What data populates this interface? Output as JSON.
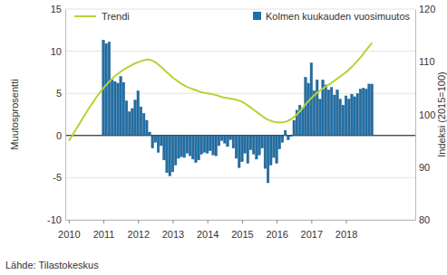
{
  "chart_data": {
    "type": "bar",
    "x": [
      2010,
      2010.083,
      2010.167,
      2010.25,
      2010.333,
      2010.417,
      2010.5,
      2010.583,
      2010.667,
      2010.75,
      2010.833,
      2010.917,
      2011,
      2011.083,
      2011.167,
      2011.25,
      2011.333,
      2011.417,
      2011.5,
      2011.583,
      2011.667,
      2011.75,
      2011.833,
      2011.917,
      2012,
      2012.083,
      2012.167,
      2012.25,
      2012.333,
      2012.417,
      2012.5,
      2012.583,
      2012.667,
      2012.75,
      2012.833,
      2012.917,
      2013,
      2013.083,
      2013.167,
      2013.25,
      2013.333,
      2013.417,
      2013.5,
      2013.583,
      2013.667,
      2013.75,
      2013.833,
      2013.917,
      2014,
      2014.083,
      2014.167,
      2014.25,
      2014.333,
      2014.417,
      2014.5,
      2014.583,
      2014.667,
      2014.75,
      2014.833,
      2014.917,
      2015,
      2015.083,
      2015.167,
      2015.25,
      2015.333,
      2015.417,
      2015.5,
      2015.583,
      2015.667,
      2015.75,
      2015.833,
      2015.917,
      2016,
      2016.083,
      2016.167,
      2016.25,
      2016.333,
      2016.417,
      2016.5,
      2016.583,
      2016.667,
      2016.75,
      2016.833,
      2016.917,
      2017,
      2017.083,
      2017.167,
      2017.25,
      2017.333,
      2017.417,
      2017.5,
      2017.583,
      2017.667,
      2017.75,
      2017.833,
      2017.917,
      2018,
      2018.083,
      2018.167,
      2018.25,
      2018.333,
      2018.417,
      2018.5,
      2018.583,
      2018.667,
      2018.75
    ],
    "series": [
      {
        "name": "Trendi",
        "type": "line",
        "axis": "y2",
        "color": "#b5d334",
        "values": [
          95.0,
          95.8,
          96.7,
          97.6,
          98.5,
          99.4,
          100.3,
          101.2,
          102.0,
          102.8,
          103.6,
          104.3,
          105.0,
          105.6,
          106.2,
          106.8,
          107.3,
          107.7,
          108.1,
          108.5,
          108.8,
          109.1,
          109.4,
          109.7,
          109.9,
          110.1,
          110.3,
          110.4,
          110.4,
          110.2,
          109.9,
          109.5,
          109.0,
          108.5,
          108.0,
          107.5,
          107.0,
          106.6,
          106.2,
          105.8,
          105.5,
          105.2,
          105.0,
          104.8,
          104.6,
          104.4,
          104.2,
          104.1,
          104.0,
          103.9,
          103.8,
          103.7,
          103.5,
          103.3,
          103.2,
          103.1,
          103.0,
          102.9,
          102.8,
          102.6,
          102.4,
          102.1,
          101.7,
          101.3,
          100.9,
          100.5,
          100.1,
          99.7,
          99.3,
          99.0,
          98.8,
          98.6,
          98.5,
          98.5,
          98.5,
          98.6,
          98.8,
          99.1,
          99.5,
          100.0,
          100.6,
          101.2,
          101.9,
          102.5,
          103.1,
          103.6,
          104.1,
          104.5,
          104.9,
          105.3,
          105.6,
          106.0,
          106.4,
          106.8,
          107.2,
          107.6,
          108.0,
          108.5,
          109.0,
          109.6,
          110.2,
          110.8,
          111.5,
          112.2,
          112.9,
          113.6
        ]
      },
      {
        "name": "Kolmen kuukauden vuosimuutos",
        "type": "bar",
        "color": "#1f6fa8",
        "values": [
          null,
          null,
          null,
          null,
          null,
          null,
          null,
          null,
          null,
          null,
          null,
          null,
          11.3,
          10.9,
          11.1,
          6.6,
          6.4,
          6.2,
          7.0,
          6.3,
          4.1,
          2.8,
          3.2,
          4.2,
          5.3,
          3.4,
          2.6,
          1.8,
          0.4,
          -1.5,
          -0.8,
          -2.0,
          -1.2,
          -2.9,
          -4.4,
          -4.8,
          -4.3,
          -3.5,
          -2.7,
          -2.5,
          -2.6,
          -2.1,
          -2.4,
          -2.8,
          -3.2,
          -2.9,
          -2.2,
          -2.0,
          -2.1,
          -1.8,
          -2.3,
          -2.4,
          -1.2,
          -0.6,
          -0.9,
          -1.3,
          -0.5,
          -1.5,
          -2.7,
          -3.8,
          -3.1,
          -2.1,
          -3.3,
          -1.7,
          -2.2,
          -2.8,
          -2.3,
          -1.5,
          -3.9,
          -5.6,
          -3.5,
          -2.6,
          -3.3,
          -1.6,
          -0.8,
          0.6,
          -0.5,
          -0.1,
          1.8,
          3.0,
          3.6,
          3.3,
          6.9,
          6.2,
          8.6,
          5.3,
          6.6,
          4.3,
          6.6,
          6.0,
          5.4,
          5.7,
          4.8,
          5.4,
          4.3,
          3.6,
          4.7,
          4.3,
          4.9,
          4.6,
          5.0,
          5.5,
          5.6,
          5.5,
          6.1,
          6.1
        ]
      }
    ],
    "xlim": [
      2009.9,
      2020
    ],
    "xticks": [
      2010,
      2011,
      2012,
      2013,
      2014,
      2015,
      2016,
      2017,
      2018
    ],
    "ylim": [
      -10,
      15
    ],
    "yticks": [
      -10,
      -5,
      0,
      5,
      10,
      15
    ],
    "y2lim": [
      80,
      120
    ],
    "y2ticks": [
      80,
      90,
      100,
      110,
      120
    ],
    "y_label": "Muutosprosentti",
    "y2_label": "Indeksi (2015=100)",
    "source": "Lähde: Tilastokeskus",
    "grid": true,
    "legend": "top"
  }
}
